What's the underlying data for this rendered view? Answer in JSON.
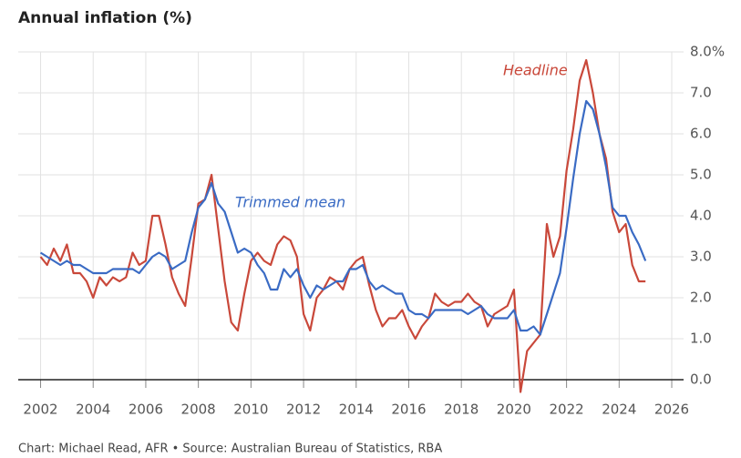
{
  "chart_data": {
    "type": "line",
    "title": "Annual inflation (%)",
    "source": "Chart: Michael Read, AFR • Source: Australian Bureau of Statistics, RBA",
    "x": [
      2002.0,
      2002.25,
      2002.5,
      2002.75,
      2003.0,
      2003.25,
      2003.5,
      2003.75,
      2004.0,
      2004.25,
      2004.5,
      2004.75,
      2005.0,
      2005.25,
      2005.5,
      2005.75,
      2006.0,
      2006.25,
      2006.5,
      2006.75,
      2007.0,
      2007.25,
      2007.5,
      2007.75,
      2008.0,
      2008.25,
      2008.5,
      2008.75,
      2009.0,
      2009.25,
      2009.5,
      2009.75,
      2010.0,
      2010.25,
      2010.5,
      2010.75,
      2011.0,
      2011.25,
      2011.5,
      2011.75,
      2012.0,
      2012.25,
      2012.5,
      2012.75,
      2013.0,
      2013.25,
      2013.5,
      2013.75,
      2014.0,
      2014.25,
      2014.5,
      2014.75,
      2015.0,
      2015.25,
      2015.5,
      2015.75,
      2016.0,
      2016.25,
      2016.5,
      2016.75,
      2017.0,
      2017.25,
      2017.5,
      2017.75,
      2018.0,
      2018.25,
      2018.5,
      2018.75,
      2019.0,
      2019.25,
      2019.5,
      2019.75,
      2020.0,
      2020.25,
      2020.5,
      2020.75,
      2021.0,
      2021.25,
      2021.5,
      2021.75,
      2022.0,
      2022.25,
      2022.5,
      2022.75,
      2023.0,
      2023.25,
      2023.5,
      2023.75,
      2024.0,
      2024.25,
      2024.5,
      2024.75,
      2025.0
    ],
    "series": [
      {
        "name": "Headline",
        "color": "#c9483a",
        "values": [
          3.0,
          2.8,
          3.2,
          2.9,
          3.3,
          2.6,
          2.6,
          2.4,
          2.0,
          2.5,
          2.3,
          2.5,
          2.4,
          2.5,
          3.1,
          2.8,
          2.9,
          4.0,
          4.0,
          3.3,
          2.5,
          2.1,
          1.8,
          3.0,
          4.3,
          4.4,
          5.0,
          3.7,
          2.4,
          1.4,
          1.2,
          2.1,
          2.9,
          3.1,
          2.9,
          2.8,
          3.3,
          3.5,
          3.4,
          3.0,
          1.6,
          1.2,
          2.0,
          2.2,
          2.5,
          2.4,
          2.2,
          2.7,
          2.9,
          3.0,
          2.3,
          1.7,
          1.3,
          1.5,
          1.5,
          1.7,
          1.3,
          1.0,
          1.3,
          1.5,
          2.1,
          1.9,
          1.8,
          1.9,
          1.9,
          2.1,
          1.9,
          1.8,
          1.3,
          1.6,
          1.7,
          1.8,
          2.2,
          -0.3,
          0.7,
          0.9,
          1.1,
          3.8,
          3.0,
          3.5,
          5.1,
          6.1,
          7.3,
          7.8,
          7.0,
          6.0,
          5.4,
          4.1,
          3.6,
          3.8,
          2.8,
          2.4,
          2.4
        ]
      },
      {
        "name": "Trimmed mean",
        "color": "#3a6bc4",
        "values": [
          3.1,
          3.0,
          2.9,
          2.8,
          2.9,
          2.8,
          2.8,
          2.7,
          2.6,
          2.6,
          2.6,
          2.7,
          2.7,
          2.7,
          2.7,
          2.6,
          2.8,
          3.0,
          3.1,
          3.0,
          2.7,
          2.8,
          2.9,
          3.6,
          4.2,
          4.4,
          4.8,
          4.3,
          4.1,
          3.6,
          3.1,
          3.2,
          3.1,
          2.8,
          2.6,
          2.2,
          2.2,
          2.7,
          2.5,
          2.7,
          2.3,
          2.0,
          2.3,
          2.2,
          2.3,
          2.4,
          2.4,
          2.7,
          2.7,
          2.8,
          2.4,
          2.2,
          2.3,
          2.2,
          2.1,
          2.1,
          1.7,
          1.6,
          1.6,
          1.5,
          1.7,
          1.7,
          1.7,
          1.7,
          1.7,
          1.6,
          1.7,
          1.8,
          1.6,
          1.5,
          1.5,
          1.5,
          1.7,
          1.2,
          1.2,
          1.3,
          1.1,
          1.6,
          2.1,
          2.6,
          3.7,
          4.9,
          6.0,
          6.8,
          6.6,
          6.0,
          5.2,
          4.2,
          4.0,
          4.0,
          3.6,
          3.3,
          2.9
        ]
      }
    ],
    "xlim": [
      2001.15,
      2026.45
    ],
    "xticks": [
      2002,
      2004,
      2006,
      2008,
      2010,
      2012,
      2014,
      2016,
      2018,
      2020,
      2022,
      2024,
      2026
    ],
    "ylim": [
      -0.4,
      8.0
    ],
    "yticks": [
      {
        "value": 0,
        "label": "0.0"
      },
      {
        "value": 1,
        "label": "1.0"
      },
      {
        "value": 2,
        "label": "2.0"
      },
      {
        "value": 3,
        "label": "3.0"
      },
      {
        "value": 4,
        "label": "4.0"
      },
      {
        "value": 5,
        "label": "5.0"
      },
      {
        "value": 6,
        "label": "6.0"
      },
      {
        "value": 7,
        "label": "7.0"
      },
      {
        "value": 8,
        "label": "8.0%"
      }
    ],
    "grid": true
  }
}
